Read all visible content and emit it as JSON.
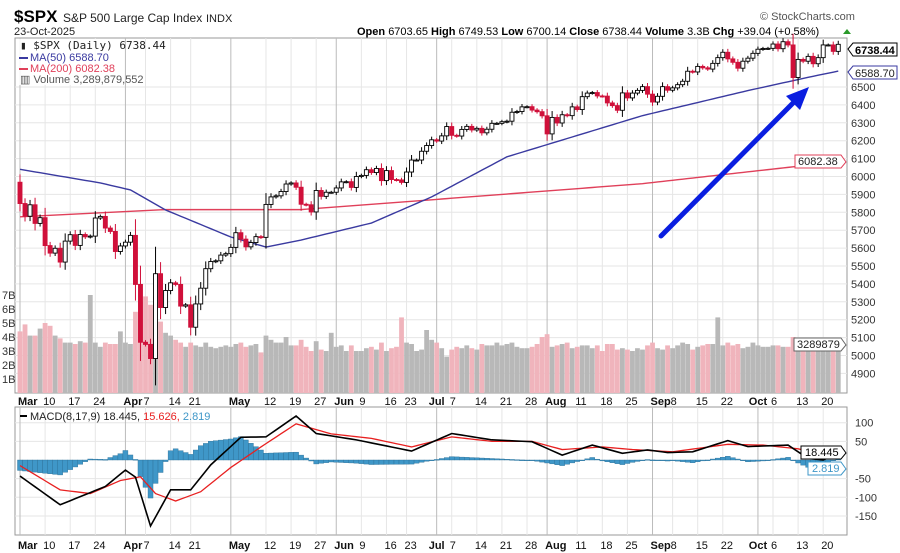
{
  "header": {
    "symbol": "$SPX",
    "name": "S&P 500 Large Cap Index",
    "exchange": "INDX",
    "date": "23-Oct-2025",
    "watermark": "© StockCharts.com",
    "open_label": "Open",
    "open": "6703.65",
    "high_label": "High",
    "high": "6749.53",
    "low_label": "Low",
    "low": "6700.14",
    "close_label": "Close",
    "close": "6738.44",
    "volume_label": "Volume",
    "volume": "3.3B",
    "chg_label": "Chg",
    "chg": "+39.04 (+0.58%)",
    "chg_icon": "up-triangle-icon"
  },
  "legend": {
    "price": "$SPX (Daily) 6738.44",
    "ma50": "MA(50) 6588.70",
    "ma200": "MA(200) 6082.38",
    "volume": "Volume 3,289,879,552",
    "macd_label": "MACD(8,17,9)",
    "macd": "18.445,",
    "signal": "15.626,",
    "hist": "2.819"
  },
  "right_labels": {
    "close": "6738.44",
    "ma50": "6588.70",
    "ma200": "6082.38",
    "volume": "3289879",
    "macd": "18.445",
    "hist": "2.819"
  },
  "colors": {
    "up": "#000000",
    "down": "#d0103a",
    "ma50": "#3a3aa0",
    "ma200": "#e0405a",
    "vol_up": "#b8b8b8",
    "vol_down": "#f0b4bc",
    "macd": "#000000",
    "signal": "#e82020",
    "hist": "#3f97c8",
    "arrow": "#0a1ee0"
  },
  "chart_data": {
    "type": "candlestick",
    "title": "$SPX S&P 500 Large Cap Index (Daily)",
    "first_open": 5968,
    "closes": [
      5849,
      5778,
      5842,
      5738,
      5770,
      5614,
      5572,
      5599,
      5522,
      5639,
      5675,
      5615,
      5676,
      5663,
      5667,
      5768,
      5777,
      5712,
      5693,
      5581,
      5612,
      5633,
      5671,
      5397,
      5074,
      5062,
      4983,
      5457,
      5268,
      5363,
      5406,
      5397,
      5276,
      5283,
      5158,
      5288,
      5376,
      5485,
      5525,
      5529,
      5561,
      5569,
      5604,
      5686,
      5650,
      5607,
      5631,
      5664,
      5660,
      5844,
      5886,
      5892,
      5916,
      5958,
      5964,
      5940,
      5845,
      5842,
      5802,
      5922,
      5889,
      5912,
      5912,
      5936,
      5970,
      5971,
      5939,
      6000,
      6006,
      6038,
      6022,
      6045,
      5977,
      6033,
      5983,
      5981,
      5967,
      6025,
      6092,
      6092,
      6141,
      6173,
      6205,
      6198,
      6227,
      6279,
      6230,
      6226,
      6263,
      6280,
      6260,
      6269,
      6244,
      6264,
      6297,
      6297,
      6306,
      6309,
      6359,
      6363,
      6389,
      6390,
      6371,
      6362,
      6339,
      6238,
      6330,
      6299,
      6345,
      6340,
      6389,
      6374,
      6446,
      6466,
      6469,
      6450,
      6449,
      6411,
      6396,
      6370,
      6467,
      6439,
      6466,
      6481,
      6502,
      6460,
      6416,
      6448,
      6502,
      6482,
      6495,
      6513,
      6532,
      6588,
      6584,
      6615,
      6607,
      6600,
      6632,
      6664,
      6694,
      6657,
      6638,
      6605,
      6644,
      6661,
      6688,
      6711,
      6715,
      6716,
      6740,
      6714,
      6753,
      6735,
      6553,
      6654,
      6644,
      6671,
      6630,
      6664,
      6735,
      6735,
      6699,
      6738.44
    ],
    "volume_billions": [
      4.4,
      4.9,
      4.1,
      4.1,
      4.6,
      5.0,
      4.8,
      4.1,
      3.9,
      3.6,
      3.6,
      3.5,
      3.7,
      3.6,
      7.0,
      3.6,
      3.3,
      3.6,
      3.5,
      3.5,
      4.4,
      3.6,
      3.5,
      5.8,
      6.5,
      6.9,
      6.3,
      6.9,
      5.1,
      4.3,
      4.1,
      3.8,
      3.6,
      3.3,
      3.6,
      3.4,
      3.3,
      3.6,
      3.3,
      3.2,
      3.3,
      3.4,
      3.3,
      3.5,
      3.6,
      3.3,
      3.4,
      3.5,
      2.9,
      4.1,
      3.8,
      3.6,
      3.6,
      4.0,
      3.4,
      3.4,
      3.8,
      3.3,
      3.0,
      3.7,
      3.1,
      3.0,
      4.3,
      3.3,
      3.4,
      3.0,
      3.4,
      3.0,
      3.0,
      3.2,
      3.3,
      3.1,
      3.6,
      3.0,
      3.2,
      3.3,
      5.4,
      3.6,
      3.5,
      3.0,
      3.1,
      4.5,
      3.8,
      3.6,
      3.2,
      2.6,
      3.1,
      3.3,
      3.2,
      3.4,
      3.2,
      3.1,
      3.5,
      3.4,
      3.4,
      3.6,
      3.4,
      3.5,
      3.6,
      3.3,
      3.2,
      3.2,
      3.3,
      3.5,
      4.0,
      4.2,
      3.3,
      3.4,
      3.5,
      3.6,
      3.2,
      3.3,
      3.4,
      3.4,
      3.2,
      3.4,
      3.0,
      3.5,
      3.5,
      3.1,
      3.2,
      3.1,
      3.0,
      3.2,
      3.1,
      3.4,
      3.6,
      3.2,
      3.1,
      3.4,
      3.2,
      3.4,
      3.6,
      3.5,
      3.1,
      3.3,
      3.4,
      3.5,
      3.5,
      5.4,
      3.4,
      3.6,
      3.4,
      3.5,
      3.2,
      3.3,
      3.6,
      3.4,
      3.3,
      3.3,
      3.4,
      3.4,
      3.3,
      3.3,
      4.0,
      3.4,
      3.5,
      3.5,
      3.6,
      3.7,
      3.1,
      3.3,
      3.5,
      3.29
    ],
    "ma50_points": [
      [
        0,
        6040
      ],
      [
        16,
        5964
      ],
      [
        22,
        5925
      ],
      [
        29,
        5813
      ],
      [
        42,
        5662
      ],
      [
        49,
        5606
      ],
      [
        56,
        5645
      ],
      [
        70,
        5740
      ],
      [
        82,
        5886
      ],
      [
        97,
        6110
      ],
      [
        124,
        6340
      ],
      [
        145,
        6480
      ],
      [
        158,
        6560
      ],
      [
        163,
        6588.7
      ]
    ],
    "ma200_points": [
      [
        0,
        5775
      ],
      [
        29,
        5815
      ],
      [
        56,
        5815
      ],
      [
        82,
        5870
      ],
      [
        124,
        5960
      ],
      [
        163,
        6082.38
      ]
    ],
    "macd_points": [
      [
        0,
        -43
      ],
      [
        8,
        -120
      ],
      [
        17,
        -71
      ],
      [
        21,
        -27
      ],
      [
        23,
        -46
      ],
      [
        26,
        -177
      ],
      [
        30,
        -80
      ],
      [
        34,
        -80
      ],
      [
        38,
        -13
      ],
      [
        44,
        61
      ],
      [
        49,
        62
      ],
      [
        55,
        118
      ],
      [
        59,
        71
      ],
      [
        67,
        54
      ],
      [
        78,
        24
      ],
      [
        86,
        71
      ],
      [
        94,
        54
      ],
      [
        102,
        49
      ],
      [
        108,
        13
      ],
      [
        114,
        40
      ],
      [
        120,
        18
      ],
      [
        125,
        27
      ],
      [
        129,
        20
      ],
      [
        134,
        22
      ],
      [
        141,
        52
      ],
      [
        145,
        36
      ],
      [
        153,
        40
      ],
      [
        157,
        4
      ],
      [
        160,
        0
      ],
      [
        162,
        13
      ],
      [
        163,
        18.445
      ]
    ],
    "signal_points": [
      [
        0,
        -15
      ],
      [
        8,
        -80
      ],
      [
        14,
        -90
      ],
      [
        20,
        -55
      ],
      [
        24,
        -45
      ],
      [
        27,
        -90
      ],
      [
        31,
        -110
      ],
      [
        36,
        -85
      ],
      [
        42,
        -20
      ],
      [
        48,
        35
      ],
      [
        55,
        97
      ],
      [
        62,
        70
      ],
      [
        70,
        58
      ],
      [
        78,
        35
      ],
      [
        86,
        62
      ],
      [
        94,
        50
      ],
      [
        102,
        50
      ],
      [
        108,
        28
      ],
      [
        116,
        35
      ],
      [
        122,
        28
      ],
      [
        130,
        22
      ],
      [
        141,
        42
      ],
      [
        148,
        40
      ],
      [
        155,
        30
      ],
      [
        160,
        14
      ],
      [
        163,
        15.626
      ]
    ],
    "price_ticks": [
      4900,
      5000,
      5100,
      5200,
      5300,
      5400,
      5500,
      5600,
      5700,
      5800,
      5900,
      6000,
      6100,
      6200,
      6300,
      6400,
      6500
    ],
    "volume_ticks": [
      "1B",
      "2B",
      "3B",
      "4B",
      "5B",
      "6B",
      "7B"
    ],
    "macd_ticks": [
      100,
      50,
      -50,
      -100,
      -150
    ],
    "x_ticks": [
      {
        "i": 0,
        "label": "Mar",
        "month": true
      },
      {
        "i": 5,
        "label": "10"
      },
      {
        "i": 10,
        "label": "17"
      },
      {
        "i": 15,
        "label": "24"
      },
      {
        "i": 21,
        "label": "Apr",
        "month": true
      },
      {
        "i": 25,
        "label": "7"
      },
      {
        "i": 30,
        "label": "14"
      },
      {
        "i": 34,
        "label": "21"
      },
      {
        "i": 42,
        "label": "May",
        "month": true
      },
      {
        "i": 49,
        "label": "12"
      },
      {
        "i": 54,
        "label": "19"
      },
      {
        "i": 59,
        "label": "27"
      },
      {
        "i": 63,
        "label": "Jun",
        "month": true
      },
      {
        "i": 68,
        "label": "9"
      },
      {
        "i": 73,
        "label": "16"
      },
      {
        "i": 77,
        "label": "23"
      },
      {
        "i": 83,
        "label": "Jul",
        "month": true
      },
      {
        "i": 86,
        "label": "7"
      },
      {
        "i": 91,
        "label": "14"
      },
      {
        "i": 96,
        "label": "21"
      },
      {
        "i": 101,
        "label": "28"
      },
      {
        "i": 105,
        "label": "Aug",
        "month": true
      },
      {
        "i": 111,
        "label": "11"
      },
      {
        "i": 116,
        "label": "18"
      },
      {
        "i": 121,
        "label": "25"
      },
      {
        "i": 126,
        "label": "Sep",
        "month": true
      },
      {
        "i": 130,
        "label": "8"
      },
      {
        "i": 135,
        "label": "15"
      },
      {
        "i": 140,
        "label": "22"
      },
      {
        "i": 147,
        "label": "Oct",
        "month": true
      },
      {
        "i": 150,
        "label": "6"
      },
      {
        "i": 155,
        "label": "13"
      },
      {
        "i": 160,
        "label": "20"
      }
    ]
  }
}
